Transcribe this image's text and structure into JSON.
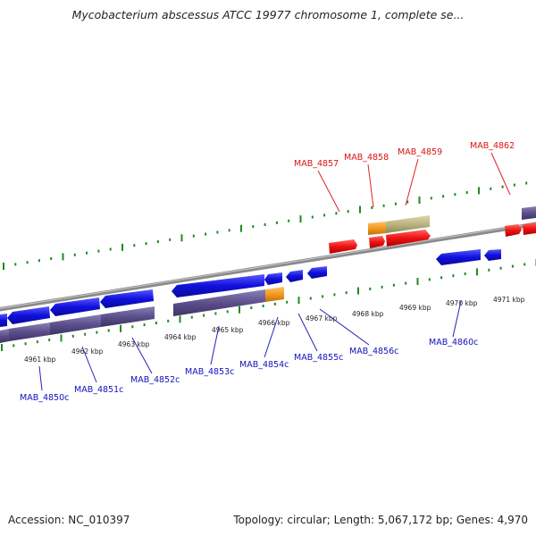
{
  "title": "Mycobacterium abscessus ATCC 19977 chromosome 1, complete se...",
  "footer": {
    "accession": "Accession: NC_010397",
    "summary": "Topology: circular; Length: 5,067,172 bp; Genes: 4,970"
  },
  "scale_labels": [
    "4961 kbp",
    "4962 kbp",
    "4963 kbp",
    "4964 kbp",
    "4965 kbp",
    "4966 kbp",
    "4967 kbp",
    "4968 kbp",
    "4969 kbp",
    "4970 kbp",
    "4971 kbp"
  ],
  "forward_genes": [
    {
      "label": "MAB_4857"
    },
    {
      "label": "MAB_4858"
    },
    {
      "label": "MAB_4859"
    },
    {
      "label": "MAB_4862"
    }
  ],
  "reverse_genes": [
    {
      "label": "MAB_4850c"
    },
    {
      "label": "MAB_4851c"
    },
    {
      "label": "MAB_4852c"
    },
    {
      "label": "MAB_4853c"
    },
    {
      "label": "MAB_4854c"
    },
    {
      "label": "MAB_4855c"
    },
    {
      "label": "MAB_4856c"
    },
    {
      "label": "MAB_4860c"
    }
  ],
  "colors": {
    "backbone": "#888888",
    "forward_cds": "#ee1111",
    "reverse_cds": "#1111dd",
    "gene_bar": "#5c4f8a",
    "gene_bar_fwd": "#bbb480",
    "highlight": "#f39a1a",
    "ticks": "#1f8a1f"
  }
}
